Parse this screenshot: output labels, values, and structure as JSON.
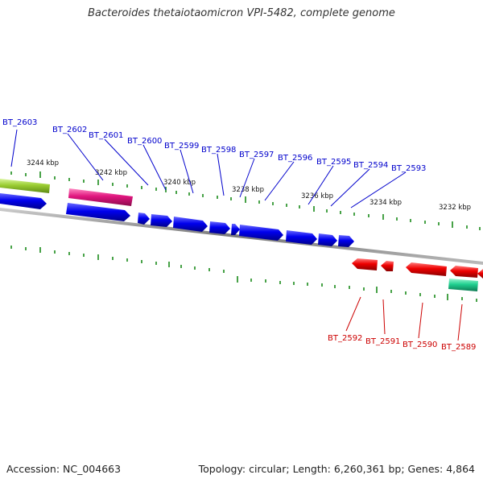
{
  "title": "Bacteroides thetaiotaomicron VPI-5482, complete genome",
  "accession_text": "Accession: NC_004663",
  "topology_text": "Topology: circular; Length: 6,260,361 bp; Genes: 4,864",
  "colors": {
    "forward_cds": "#0000ee",
    "reverse_cds": "#ee0000",
    "trna": "#e0157e",
    "green_gene": "#9acd32",
    "teal_gene": "#20d090",
    "backbone": "#888888",
    "tick": "#1a8a1a",
    "forward_label": "#0000cc",
    "reverse_label": "#cc0000"
  },
  "scale_labels": [
    "3244 kbp",
    "3242 kbp",
    "3240 kbp",
    "3238 kbp",
    "3236 kbp",
    "3234 kbp",
    "3232 kbp"
  ],
  "forward_genes": [
    "BT_2603",
    "BT_2602",
    "BT_2601",
    "BT_2600",
    "BT_2599",
    "BT_2598",
    "BT_2597",
    "BT_2596",
    "BT_2595",
    "BT_2594",
    "BT_2593"
  ],
  "reverse_genes": [
    "BT_2592",
    "BT_2591",
    "BT_2590",
    "BT_2589"
  ]
}
